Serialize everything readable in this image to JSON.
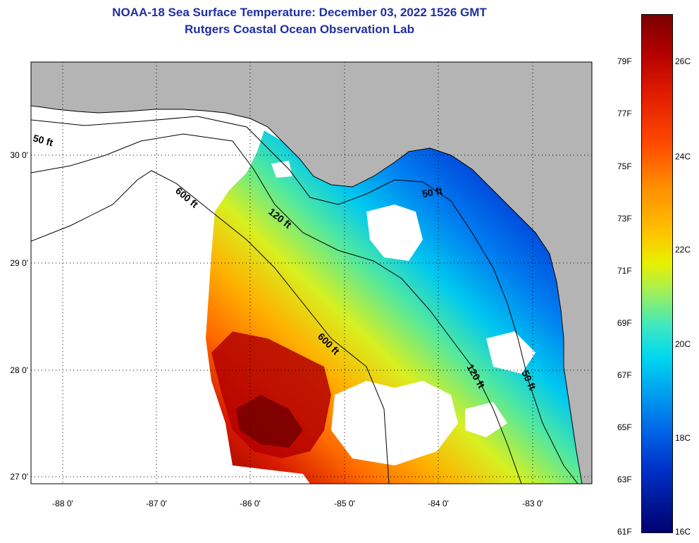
{
  "header": {
    "title_line1": "NOAA-18 Sea Surface Temperature:  December 03, 2022 1526 GMT",
    "title_line2": "Rutgers Coastal Ocean Observation Lab"
  },
  "map": {
    "lat_labels": [
      "30 0'",
      "29 0'",
      "28 0'",
      "27 0'"
    ],
    "lon_labels": [
      "-88 0'",
      "-87 0'",
      "-86 0'",
      "-85 0'",
      "-84 0'",
      "-83 0'"
    ],
    "depth_contours": [
      "50 ft",
      "600 ft",
      "120 ft",
      "600 ft",
      "50 ft",
      "120 ft",
      "50 ft"
    ]
  },
  "colorbar": {
    "fahrenheit_labels": [
      "79F",
      "77F",
      "75F",
      "73F",
      "71F",
      "69F",
      "67F",
      "65F",
      "63F",
      "61F"
    ],
    "celsius_labels": [
      "26C",
      "24C",
      "22C",
      "20C",
      "18C",
      "16C"
    ]
  },
  "colors": {
    "title": "#1f2fa0",
    "land": "#b4b4b4",
    "ocean_blank": "#ffffff"
  }
}
